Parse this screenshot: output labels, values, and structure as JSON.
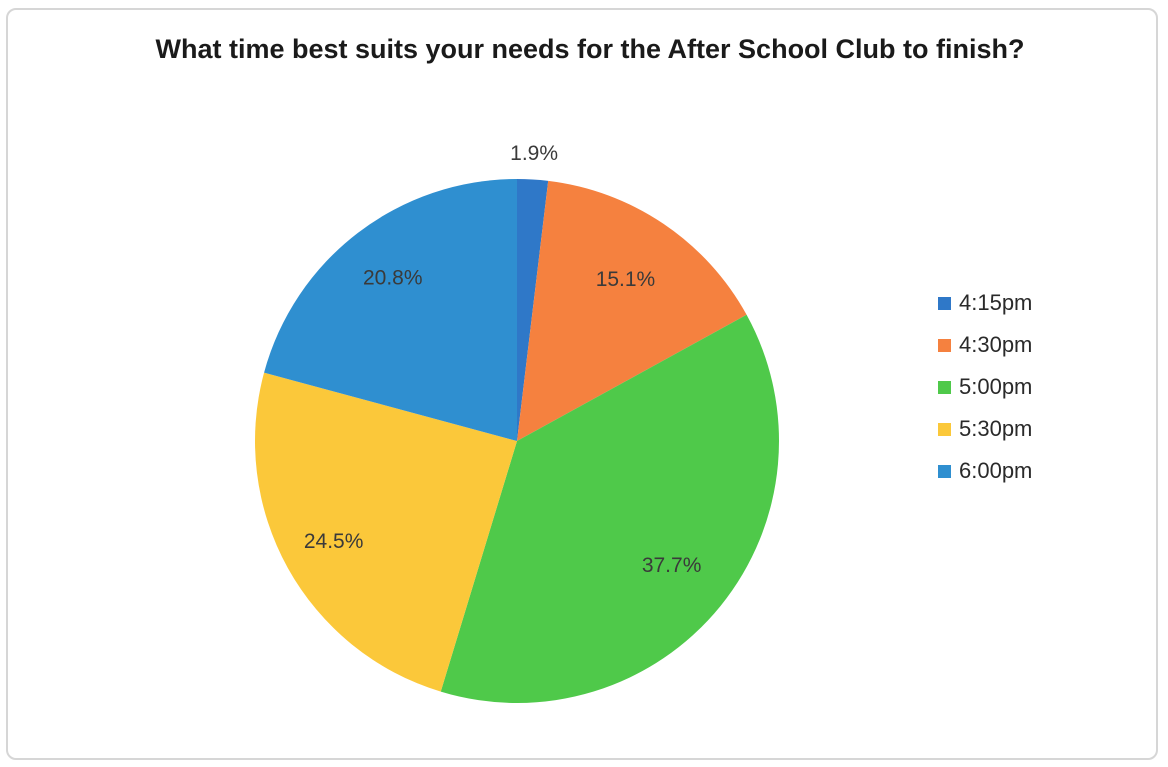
{
  "chart_data": {
    "type": "pie",
    "title": "What time best suits your needs for the After School Club to finish?",
    "categories": [
      "4:15pm",
      "4:30pm",
      "5:00pm",
      "5:30pm",
      "6:00pm"
    ],
    "values": [
      1.9,
      15.1,
      37.7,
      24.5,
      20.8
    ],
    "labels": [
      "1.9%",
      "15.1%",
      "37.7%",
      "24.5%",
      "20.8%"
    ],
    "colors": [
      "#2f78c8",
      "#f5813f",
      "#4fc94a",
      "#fbc83a",
      "#2f8fd0"
    ],
    "legend_position": "right"
  }
}
